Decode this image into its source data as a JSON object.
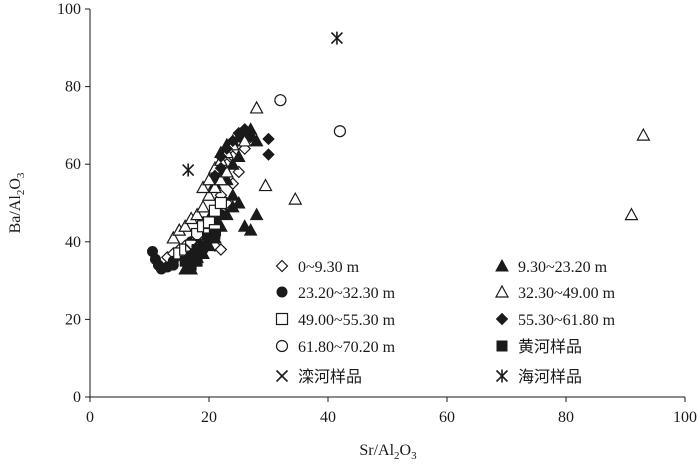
{
  "chart_data": {
    "type": "scatter",
    "title": "",
    "xlabel": {
      "main": "Sr/Al",
      "sub": "2",
      "main2": "O",
      "sub2": "3"
    },
    "ylabel": {
      "main": "Ba/Al",
      "sub": "2",
      "main2": "O",
      "sub2": "3"
    },
    "xlim": [
      0,
      100
    ],
    "ylim": [
      0,
      100
    ],
    "xticks": [
      "0",
      "20",
      "40",
      "60",
      "80",
      "100"
    ],
    "yticks": [
      "0",
      "20",
      "40",
      "60",
      "80",
      "100"
    ],
    "grid": false,
    "legend_position": "bottom-right",
    "series": [
      {
        "name": "0~9.30 m",
        "marker": "diamond-open",
        "points": [
          [
            13,
            36
          ],
          [
            14,
            37
          ],
          [
            15,
            38
          ],
          [
            16,
            39
          ],
          [
            17,
            38
          ],
          [
            18,
            40
          ],
          [
            19,
            41
          ],
          [
            20,
            40
          ],
          [
            21,
            39
          ],
          [
            22,
            38
          ],
          [
            20,
            43
          ],
          [
            19,
            45
          ],
          [
            21,
            46
          ],
          [
            22,
            48
          ],
          [
            23,
            50
          ],
          [
            22,
            52
          ],
          [
            24,
            55
          ],
          [
            25,
            58
          ],
          [
            23,
            60
          ],
          [
            24,
            62
          ],
          [
            26,
            64
          ]
        ]
      },
      {
        "name": "9.30~23.20 m",
        "marker": "triangle-filled",
        "points": [
          [
            16,
            33
          ],
          [
            17,
            33
          ],
          [
            18,
            36
          ],
          [
            19,
            37
          ],
          [
            20,
            39
          ],
          [
            21,
            41
          ],
          [
            22,
            44
          ],
          [
            23,
            47
          ],
          [
            24,
            49
          ],
          [
            25,
            50
          ],
          [
            24,
            52
          ],
          [
            23,
            56
          ],
          [
            24,
            60
          ],
          [
            25,
            62
          ],
          [
            26,
            44
          ],
          [
            27,
            43
          ],
          [
            28,
            47
          ],
          [
            22,
            63
          ],
          [
            23,
            65
          ],
          [
            24,
            66
          ],
          [
            25,
            67
          ],
          [
            26,
            68
          ],
          [
            27,
            69
          ],
          [
            28,
            66
          ],
          [
            21,
            55
          ],
          [
            22,
            58
          ],
          [
            20,
            46
          ]
        ]
      },
      {
        "name": "23.20~32.30 m",
        "marker": "circle-filled",
        "points": [
          [
            10.5,
            37.5
          ],
          [
            11,
            35.5
          ],
          [
            11.5,
            34
          ],
          [
            12,
            33
          ],
          [
            13,
            33.5
          ],
          [
            14,
            35
          ],
          [
            15,
            36.5
          ],
          [
            14,
            34
          ],
          [
            16,
            38
          ],
          [
            17,
            40
          ],
          [
            18,
            41
          ],
          [
            19,
            43
          ],
          [
            20,
            44
          ],
          [
            21,
            45
          ],
          [
            22,
            47
          ],
          [
            18,
            37
          ],
          [
            19,
            38
          ]
        ]
      },
      {
        "name": "32.30~49.00 m",
        "marker": "triangle-open",
        "points": [
          [
            14,
            41
          ],
          [
            15,
            43
          ],
          [
            16,
            44
          ],
          [
            17,
            46
          ],
          [
            18,
            47
          ],
          [
            19,
            49
          ],
          [
            20,
            52
          ],
          [
            21,
            54
          ],
          [
            22,
            56
          ],
          [
            23,
            58
          ],
          [
            19,
            54
          ],
          [
            20,
            56
          ],
          [
            21,
            59
          ],
          [
            22,
            61
          ],
          [
            23,
            63
          ],
          [
            24,
            65
          ],
          [
            26,
            66
          ],
          [
            28,
            74.5
          ],
          [
            29.5,
            54.5
          ],
          [
            34.5,
            51
          ],
          [
            91,
            47
          ],
          [
            93,
            67.5
          ]
        ]
      },
      {
        "name": "49.00~55.30 m",
        "marker": "square-open",
        "points": [
          [
            15,
            37
          ],
          [
            16,
            38
          ],
          [
            17,
            39
          ],
          [
            18,
            42
          ],
          [
            19,
            44
          ],
          [
            20,
            45
          ],
          [
            21,
            48
          ],
          [
            22,
            50
          ],
          [
            20,
            42
          ],
          [
            21,
            43
          ]
        ]
      },
      {
        "name": "55.30~61.80 m",
        "marker": "diamond-filled",
        "points": [
          [
            22,
            62
          ],
          [
            23,
            64
          ],
          [
            24,
            66
          ],
          [
            25,
            68
          ],
          [
            26,
            69
          ],
          [
            27,
            67
          ],
          [
            30,
            66.5
          ],
          [
            30,
            62.5
          ],
          [
            21,
            57
          ],
          [
            22,
            59
          ]
        ]
      },
      {
        "name": "61.80~70.20 m",
        "marker": "circle-open",
        "points": [
          [
            32,
            76.5
          ],
          [
            42,
            68.5
          ]
        ]
      },
      {
        "name": "黄河样品",
        "marker": "square-filled",
        "points": [
          [
            16,
            35
          ],
          [
            17,
            36
          ],
          [
            18,
            38
          ],
          [
            19,
            39
          ],
          [
            20,
            41
          ],
          [
            21,
            42
          ],
          [
            17,
            34
          ],
          [
            18,
            35
          ]
        ]
      },
      {
        "name": "滦河样品",
        "marker": "x",
        "points": [
          [
            17,
            38
          ],
          [
            18,
            40
          ]
        ]
      },
      {
        "name": "海河样品",
        "marker": "asterisk",
        "points": [
          [
            16.5,
            58.5
          ],
          [
            41.5,
            92.5
          ]
        ]
      }
    ],
    "legend_layout": [
      {
        "series": 0,
        "col": 0,
        "row": 0
      },
      {
        "series": 1,
        "col": 1,
        "row": 0
      },
      {
        "series": 2,
        "col": 0,
        "row": 1
      },
      {
        "series": 3,
        "col": 1,
        "row": 1
      },
      {
        "series": 4,
        "col": 0,
        "row": 2
      },
      {
        "series": 5,
        "col": 1,
        "row": 2
      },
      {
        "series": 6,
        "col": 0,
        "row": 3
      },
      {
        "series": 7,
        "col": 1,
        "row": 3
      },
      {
        "series": 8,
        "col": 0,
        "row": 4
      },
      {
        "series": 9,
        "col": 1,
        "row": 4
      }
    ]
  }
}
